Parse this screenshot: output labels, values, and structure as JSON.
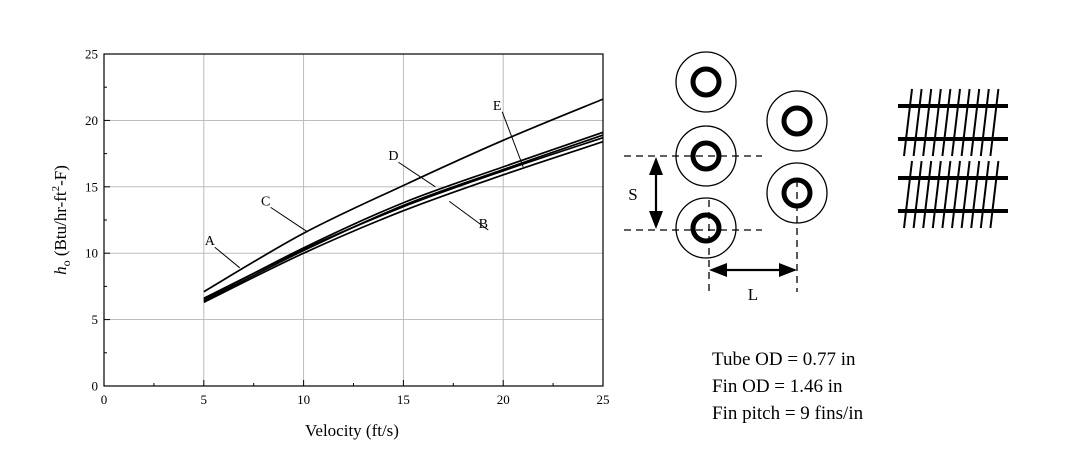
{
  "chart_data": {
    "type": "line",
    "xlabel": "Velocity  (ft/s)",
    "ylabel_main": "h",
    "ylabel_sub": "o",
    "ylabel_unit_pre": " (Btu/hr-ft",
    "ylabel_unit_sup": "2",
    "ylabel_unit_post": "-F)",
    "xlim": [
      0,
      25
    ],
    "ylim": [
      0,
      25
    ],
    "xticks": [
      0,
      5,
      10,
      15,
      20,
      25
    ],
    "yticks": [
      0,
      5,
      10,
      15,
      20,
      25
    ],
    "grid": true,
    "series": [
      {
        "name": "A",
        "x": [
          5,
          10,
          15,
          20,
          25
        ],
        "y": [
          6.6,
          10.3,
          13.5,
          16.2,
          18.7
        ]
      },
      {
        "name": "B",
        "x": [
          5,
          10,
          15,
          20,
          25
        ],
        "y": [
          6.3,
          10.0,
          13.2,
          15.9,
          18.4
        ]
      },
      {
        "name": "C",
        "x": [
          5,
          10,
          15,
          20,
          25
        ],
        "y": [
          7.1,
          11.5,
          15.1,
          18.5,
          21.6
        ]
      },
      {
        "name": "D",
        "x": [
          5,
          10,
          15,
          20,
          25
        ],
        "y": [
          6.5,
          10.4,
          13.8,
          16.5,
          19.1
        ]
      },
      {
        "name": "E",
        "x": [
          5,
          10,
          15,
          20,
          25
        ],
        "y": [
          6.4,
          10.2,
          13.6,
          16.3,
          18.9
        ]
      }
    ],
    "annotations": [
      {
        "label": "A",
        "text_at": [
          5.3,
          10.6
        ],
        "point_at": [
          6.8,
          8.9
        ]
      },
      {
        "label": "C",
        "text_at": [
          8.1,
          13.6
        ],
        "point_at": [
          10.2,
          11.6
        ]
      },
      {
        "label": "D",
        "text_at": [
          14.5,
          17.0
        ],
        "point_at": [
          16.6,
          15.0
        ]
      },
      {
        "label": "B",
        "text_at": [
          19.0,
          11.9
        ],
        "point_at": [
          17.3,
          13.9
        ]
      },
      {
        "label": "E",
        "text_at": [
          19.7,
          20.8
        ],
        "point_at": [
          21.0,
          16.5
        ]
      }
    ]
  },
  "diagram": {
    "spacing_label": "S",
    "pitch_label": "L"
  },
  "specs": {
    "tube_od": "Tube OD = 0.77 in",
    "fin_od": "Fin OD = 1.46 in",
    "fin_pitch": "Fin pitch = 9 fins/in"
  }
}
